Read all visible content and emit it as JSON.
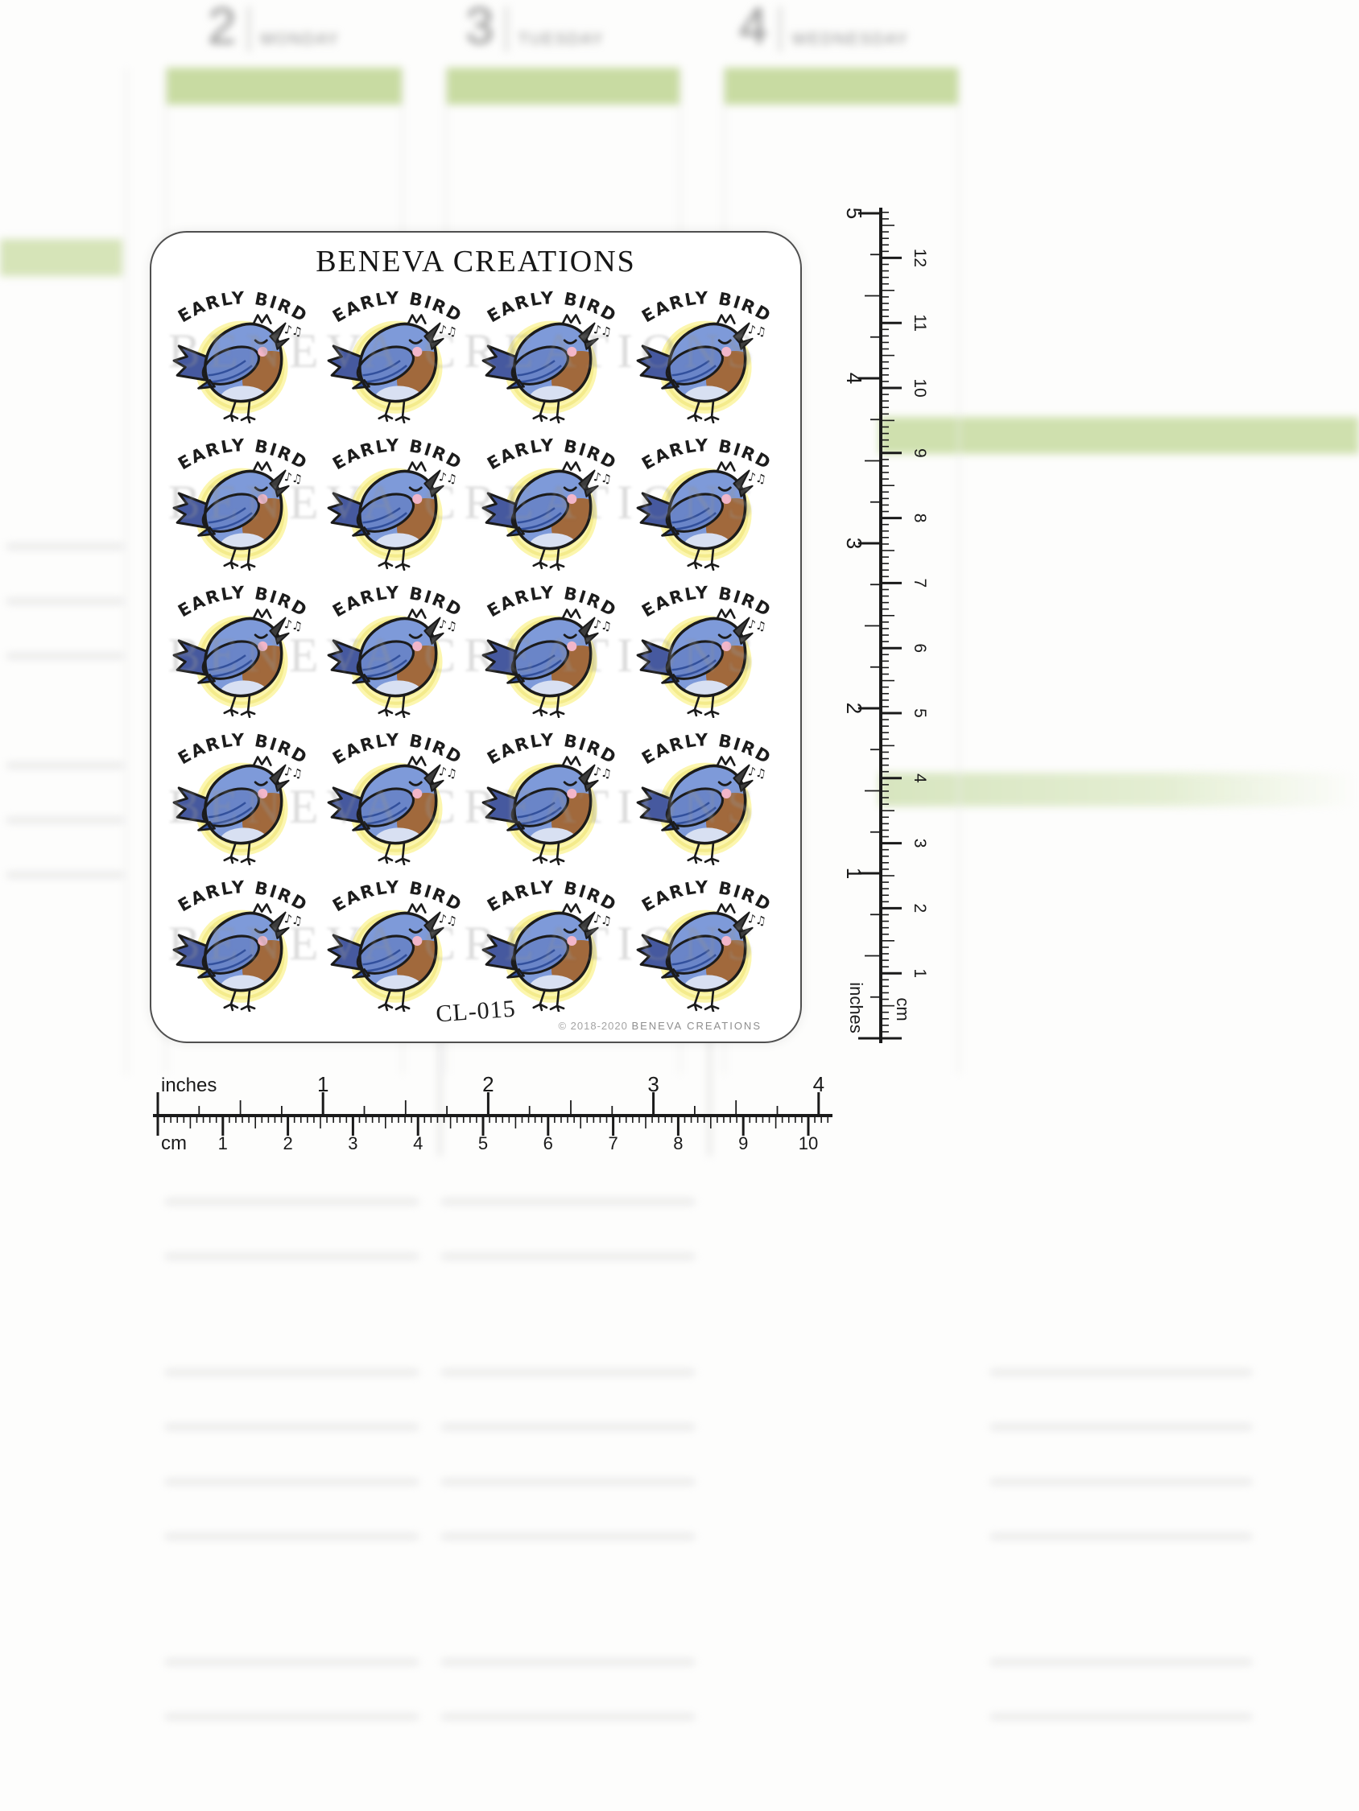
{
  "background": {
    "weekdays": [
      {
        "number": "2",
        "label": "MONDAY"
      },
      {
        "number": "3",
        "label": "TUESDAY"
      },
      {
        "number": "4",
        "label": "WEDNESDAY"
      }
    ],
    "watermark_text": "BENEVA CREATIONS"
  },
  "sheet": {
    "title": "BENEVA CREATIONS",
    "product_code": "CL-015",
    "copyright": "© 2018-2020",
    "copyright_brand": "BENEVA CREATIONS",
    "sticker": {
      "label": "EARLY BIRD",
      "notes": "♪♫",
      "grid": {
        "rows": 5,
        "cols": 4,
        "count": 20
      }
    }
  },
  "vertical_ruler": {
    "inch_label": "inches",
    "cm_label": "cm",
    "inch_numbers": [
      "5",
      "4",
      "3",
      "2",
      "1"
    ],
    "cm_numbers": [
      "12",
      "11",
      "10",
      "9",
      "8",
      "7",
      "6",
      "5",
      "4",
      "3",
      "2",
      "1"
    ]
  },
  "horizontal_ruler": {
    "inch_label": "inches",
    "cm_label": "cm",
    "inch_numbers": [
      "1",
      "2",
      "3",
      "4"
    ],
    "cm_numbers": [
      "1",
      "2",
      "3",
      "4",
      "5",
      "6",
      "7",
      "8",
      "9",
      "10"
    ]
  },
  "colors": {
    "sun-outer": "#fcf6ae",
    "sun-mid": "#f9f09a",
    "sun-core": "#f6eb84",
    "sun-ring": "#f1e77e",
    "bird-blue": "#7e9ad9",
    "wing-blue": "#6a85c8",
    "tail-blue": "#46599f",
    "breast": "#a1693c",
    "belly": "#d8e0f2",
    "cheek": "#f2b6c9",
    "green": "#c8dba2"
  }
}
